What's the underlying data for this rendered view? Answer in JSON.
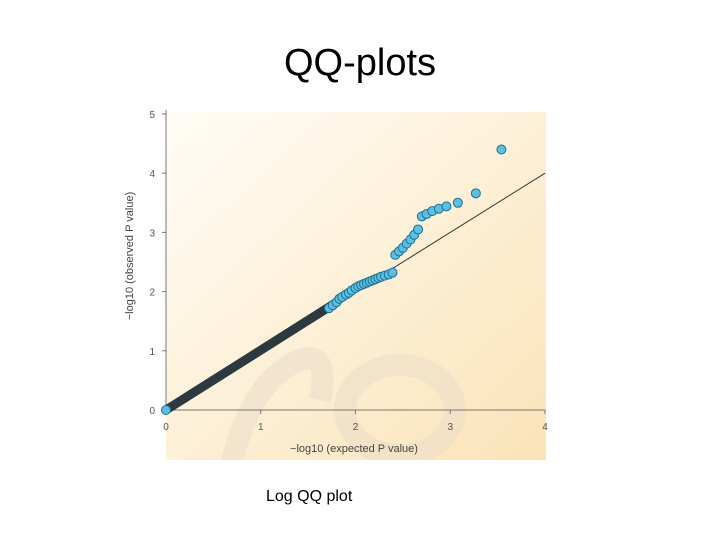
{
  "slide": {
    "title": "QQ-plots",
    "caption": "Log QQ plot"
  },
  "colors": {
    "point_fill": "#5bbfe2",
    "point_stroke": "#1f6f8f",
    "dense_point": "#2c3a40",
    "reference_line": "#333333",
    "background_light": "#fffdf7",
    "background_warm": "#fbe3b8"
  },
  "chart_data": {
    "type": "scatter",
    "title": "",
    "xlabel": "−log10 (expected P value)",
    "ylabel": "−log10 (observed P value)",
    "xlim": [
      0,
      4
    ],
    "ylim": [
      0,
      5
    ],
    "x_ticks": [
      "0",
      "1",
      "2",
      "3",
      "4"
    ],
    "y_ticks": [
      "0",
      "1",
      "2",
      "3",
      "4",
      "5"
    ],
    "grid": false,
    "legend": "none",
    "reference_line": {
      "from": [
        0,
        0
      ],
      "to": [
        4,
        4
      ]
    },
    "dense_segment": {
      "from": [
        0,
        0
      ],
      "to": [
        1.78,
        1.8
      ]
    },
    "points": [
      {
        "x": 0.0,
        "y": 0.0
      },
      {
        "x": 1.72,
        "y": 1.72
      },
      {
        "x": 1.76,
        "y": 1.77
      },
      {
        "x": 1.8,
        "y": 1.82
      },
      {
        "x": 1.83,
        "y": 1.88
      },
      {
        "x": 1.86,
        "y": 1.91
      },
      {
        "x": 1.9,
        "y": 1.95
      },
      {
        "x": 1.93,
        "y": 1.98
      },
      {
        "x": 1.96,
        "y": 2.02
      },
      {
        "x": 2.0,
        "y": 2.06
      },
      {
        "x": 2.03,
        "y": 2.09
      },
      {
        "x": 2.06,
        "y": 2.11
      },
      {
        "x": 2.09,
        "y": 2.13
      },
      {
        "x": 2.12,
        "y": 2.15
      },
      {
        "x": 2.15,
        "y": 2.17
      },
      {
        "x": 2.18,
        "y": 2.19
      },
      {
        "x": 2.21,
        "y": 2.21
      },
      {
        "x": 2.24,
        "y": 2.23
      },
      {
        "x": 2.27,
        "y": 2.25
      },
      {
        "x": 2.31,
        "y": 2.27
      },
      {
        "x": 2.35,
        "y": 2.29
      },
      {
        "x": 2.39,
        "y": 2.32
      },
      {
        "x": 2.42,
        "y": 2.62
      },
      {
        "x": 2.46,
        "y": 2.68
      },
      {
        "x": 2.5,
        "y": 2.74
      },
      {
        "x": 2.54,
        "y": 2.81
      },
      {
        "x": 2.58,
        "y": 2.88
      },
      {
        "x": 2.62,
        "y": 2.96
      },
      {
        "x": 2.66,
        "y": 3.05
      },
      {
        "x": 2.7,
        "y": 3.27
      },
      {
        "x": 2.75,
        "y": 3.31
      },
      {
        "x": 2.81,
        "y": 3.36
      },
      {
        "x": 2.88,
        "y": 3.4
      },
      {
        "x": 2.96,
        "y": 3.44
      },
      {
        "x": 3.08,
        "y": 3.5
      },
      {
        "x": 3.27,
        "y": 3.66
      },
      {
        "x": 3.54,
        "y": 4.4
      }
    ]
  }
}
